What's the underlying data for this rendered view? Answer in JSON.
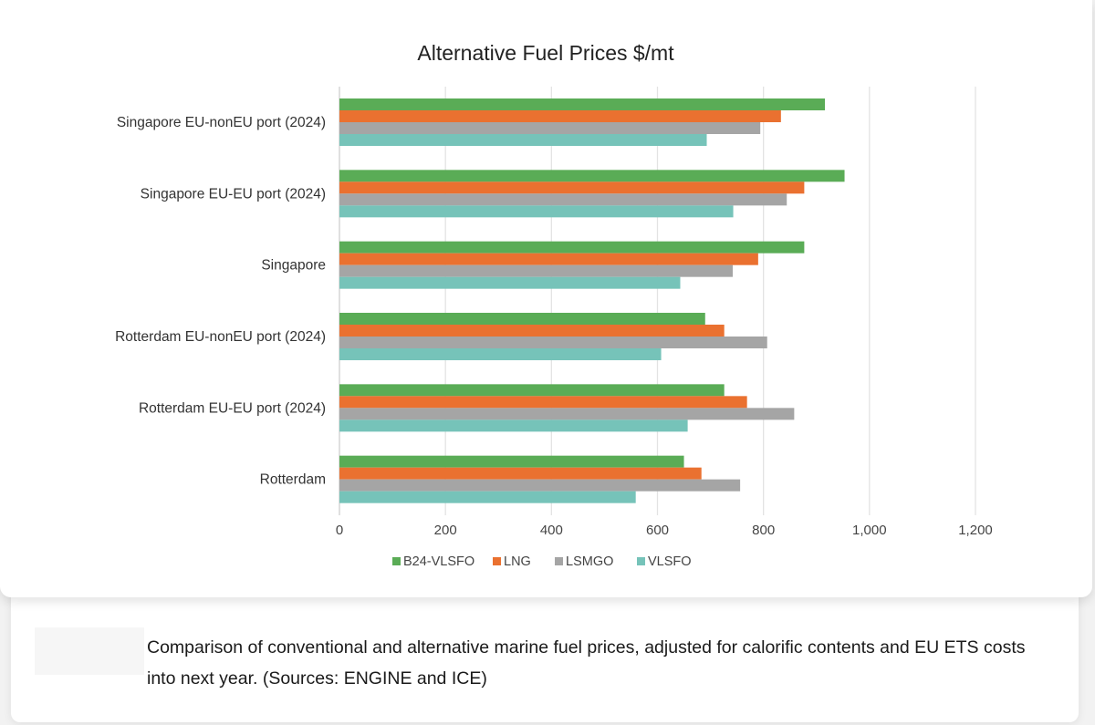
{
  "chart_data": {
    "type": "bar",
    "orientation": "horizontal",
    "title": "Alternative Fuel Prices $/mt",
    "xlabel": "",
    "ylabel": "",
    "xlim": [
      0,
      1200
    ],
    "x_ticks": [
      0,
      200,
      400,
      600,
      800,
      1000,
      1200
    ],
    "x_tick_labels": [
      "0",
      "200",
      "400",
      "600",
      "800",
      "1,000",
      "1,200"
    ],
    "grid": true,
    "legend_position": "bottom",
    "categories": [
      "Singapore EU-nonEU port (2024)",
      "Singapore EU-EU port (2024)",
      "Singapore",
      "Rotterdam EU-nonEU port (2024)",
      "Rotterdam EU-EU port (2024)",
      "Rotterdam"
    ],
    "series": [
      {
        "name": "B24-VLSFO",
        "color": "#5aac56",
        "values": [
          916,
          953,
          877,
          690,
          726,
          650
        ]
      },
      {
        "name": "LNG",
        "color": "#ea7130",
        "values": [
          833,
          877,
          790,
          726,
          769,
          683
        ]
      },
      {
        "name": "LSMGO",
        "color": "#a5a5a5",
        "values": [
          794,
          844,
          742,
          807,
          858,
          756
        ]
      },
      {
        "name": "VLSFO",
        "color": "#76c3b9",
        "values": [
          693,
          743,
          643,
          607,
          657,
          559
        ]
      }
    ]
  },
  "caption": "Comparison of conventional and alternative marine fuel prices, adjusted for calorific contents and EU ETS costs into next year. (Sources: ENGINE and ICE)"
}
